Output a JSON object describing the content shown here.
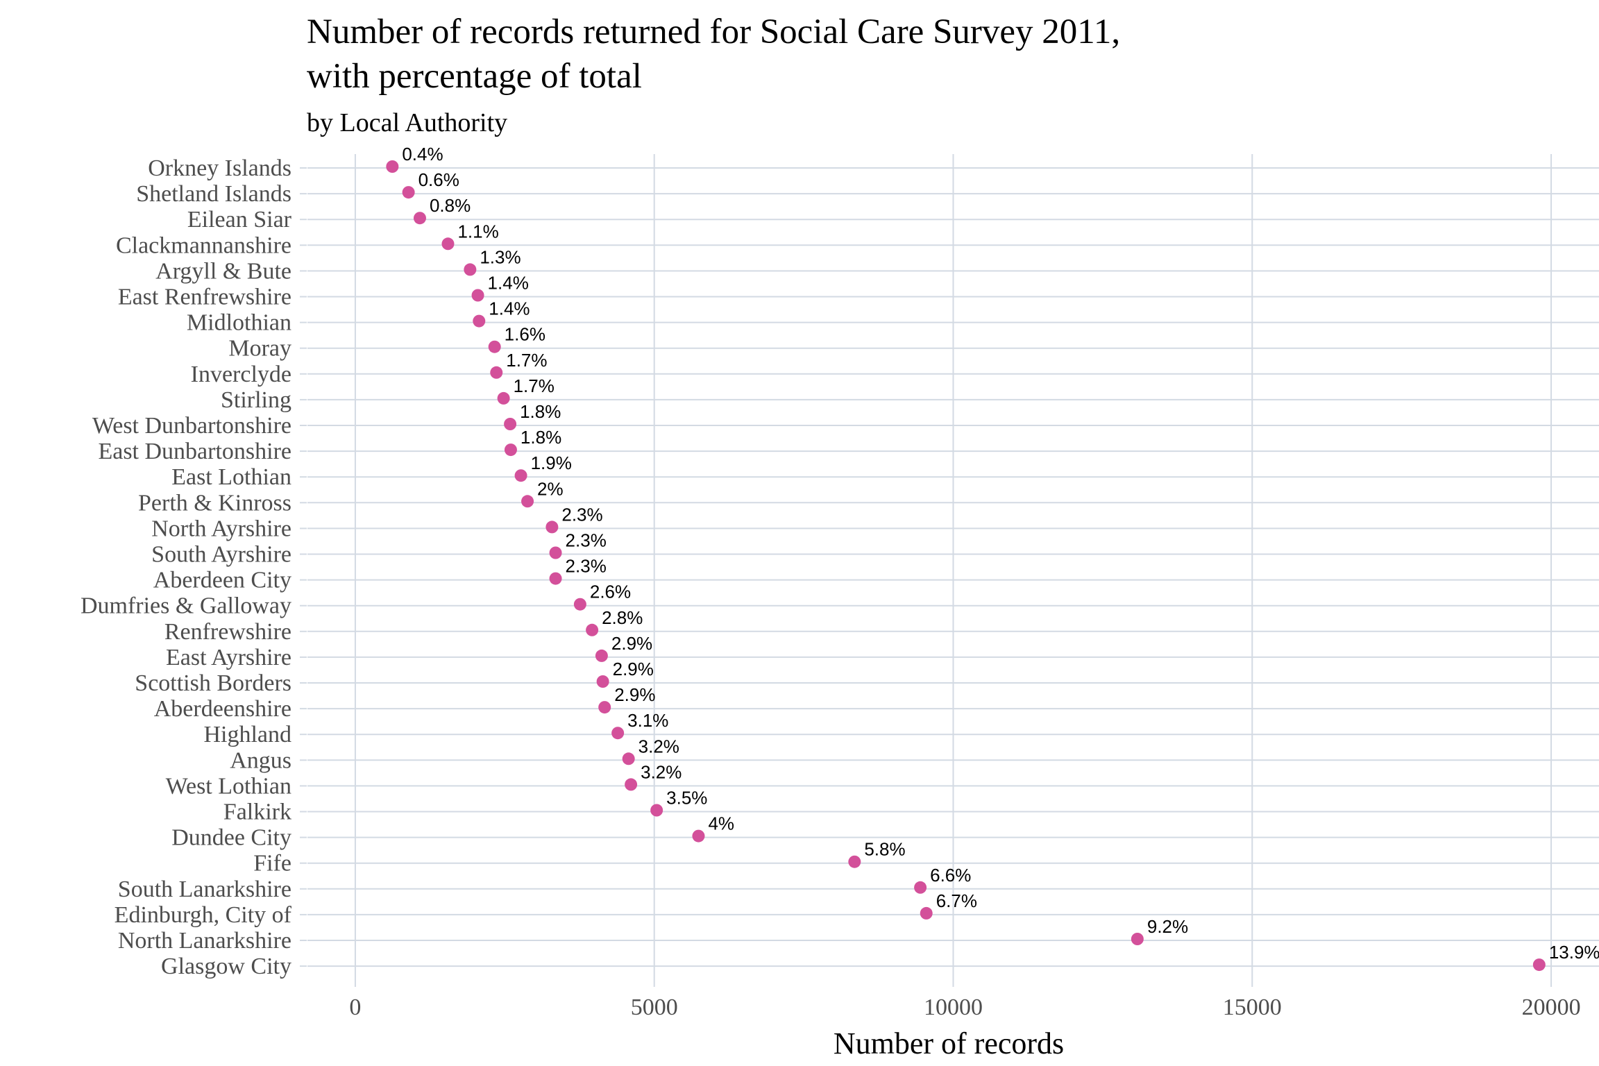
{
  "chart_data": {
    "type": "scatter",
    "title": "Number of records returned for Social Care Survey 2011, with percentage of total",
    "title_lines": [
      "Number of records returned for Social Care Survey 2011,",
      "with percentage of total"
    ],
    "subtitle": "by Local Authority",
    "xlabel": "Number of records",
    "ylabel": "",
    "xlim": [
      -800,
      20800
    ],
    "xticks": [
      0,
      5000,
      10000,
      15000,
      20000
    ],
    "grid": true,
    "legend": "none",
    "point_color": "#d3509a",
    "grid_color": "#d3dae3",
    "categories": [
      "Orkney Islands",
      "Shetland Islands",
      "Eilean Siar",
      "Clackmannanshire",
      "Argyll & Bute",
      "East Renfrewshire",
      "Midlothian",
      "Moray",
      "Inverclyde",
      "Stirling",
      "West Dunbartonshire",
      "East Dunbartonshire",
      "East Lothian",
      "Perth & Kinross",
      "North Ayrshire",
      "South Ayrshire",
      "Aberdeen City",
      "Dumfries & Galloway",
      "Renfrewshire",
      "East Ayrshire",
      "Scottish Borders",
      "Aberdeenshire",
      "Highland",
      "Angus",
      "West Lothian",
      "Falkirk",
      "Dundee City",
      "Fife",
      "South Lanarkshire",
      "Edinburgh, City of",
      "North Lanarkshire",
      "Glasgow City"
    ],
    "values": [
      620,
      890,
      1080,
      1550,
      1920,
      2050,
      2070,
      2330,
      2360,
      2480,
      2590,
      2600,
      2770,
      2880,
      3290,
      3350,
      3350,
      3760,
      3960,
      4120,
      4140,
      4170,
      4390,
      4570,
      4610,
      5040,
      5740,
      8350,
      9450,
      9550,
      13080,
      19800
    ],
    "labels": [
      "0.4%",
      "0.6%",
      "0.8%",
      "1.1%",
      "1.3%",
      "1.4%",
      "1.4%",
      "1.6%",
      "1.7%",
      "1.7%",
      "1.8%",
      "1.8%",
      "1.9%",
      "2%",
      "2.3%",
      "2.3%",
      "2.3%",
      "2.6%",
      "2.8%",
      "2.9%",
      "2.9%",
      "2.9%",
      "3.1%",
      "3.2%",
      "3.2%",
      "3.5%",
      "4%",
      "5.8%",
      "6.6%",
      "6.7%",
      "9.2%",
      "13.9%"
    ]
  }
}
